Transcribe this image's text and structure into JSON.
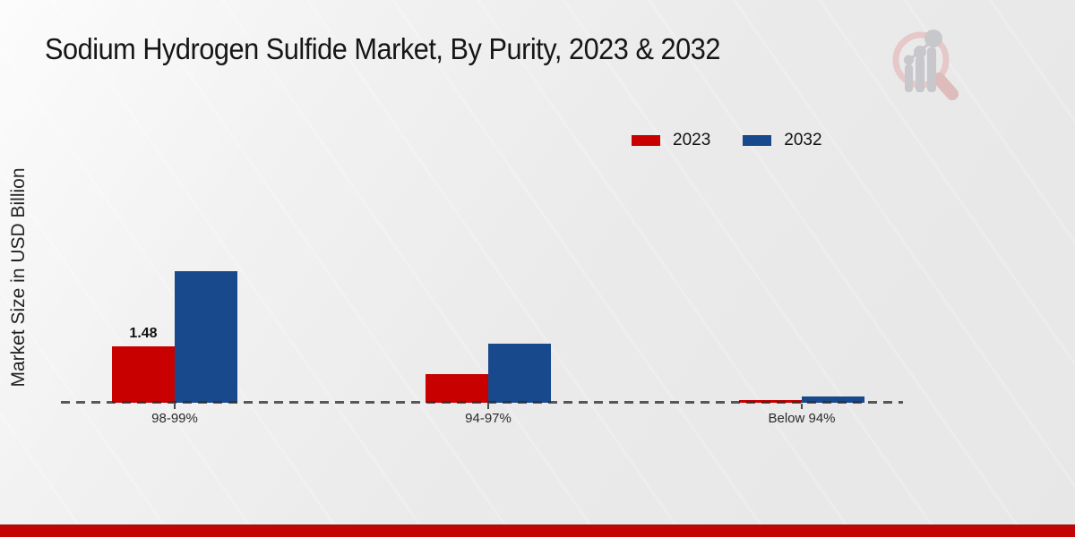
{
  "title": "Sodium Hydrogen Sulfide Market, By Purity, 2023 & 2032",
  "y_axis_label": "Market Size in USD Billion",
  "legend": {
    "items": [
      {
        "label": "2023",
        "color": "#c80000"
      },
      {
        "label": "2032",
        "color": "#17498c"
      }
    ]
  },
  "watermark": "market-research-future-logo",
  "colors": {
    "bar_2023": "#c80000",
    "bar_2032": "#17498c",
    "footer_red": "#c40404",
    "footer_red_dark": "#9b1414",
    "baseline_dash": "#2d2d2d",
    "title_text": "#161616",
    "watermark_pink": "#e6c8c8",
    "watermark_gray": "#c7c7cc"
  },
  "chart_data": {
    "type": "bar",
    "categories": [
      "98-99%",
      "94-97%",
      "Below 94%"
    ],
    "series": [
      {
        "name": "2023",
        "color": "#c80000",
        "values": [
          1.48,
          0.75,
          0.07
        ]
      },
      {
        "name": "2032",
        "color": "#17498c",
        "values": [
          3.45,
          1.55,
          0.16
        ]
      }
    ],
    "bar_value_labels": [
      {
        "series_index": 0,
        "category_index": 0,
        "text": "1.48"
      }
    ],
    "title": "Sodium Hydrogen Sulfide Market, By Purity, 2023 & 2032",
    "xlabel": "",
    "ylabel": "Market Size in USD Billion",
    "ylim": [
      0,
      4
    ],
    "grid": false,
    "legend_position": "top-right",
    "zero_line_style": "dashed"
  }
}
